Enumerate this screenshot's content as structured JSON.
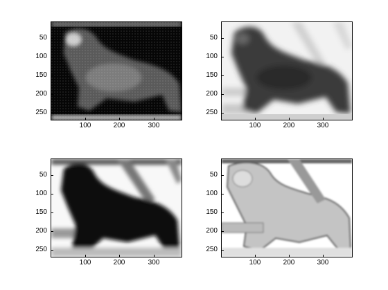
{
  "figure": {
    "panels": [
      {
        "id": "top-left",
        "style": "dark",
        "yticks": [
          "50",
          "100",
          "150",
          "200",
          "250"
        ],
        "xticks": [
          "100",
          "200",
          "300"
        ]
      },
      {
        "id": "top-right",
        "style": "light-blur",
        "yticks": [
          "50",
          "100",
          "150",
          "200",
          "250"
        ],
        "xticks": [
          "100",
          "200",
          "300"
        ]
      },
      {
        "id": "bottom-left",
        "style": "black-silhouette",
        "yticks": [
          "50",
          "100",
          "150",
          "200",
          "250"
        ],
        "xticks": [
          "100",
          "200",
          "300"
        ]
      },
      {
        "id": "bottom-right",
        "style": "edge-light",
        "yticks": [
          "50",
          "100",
          "150",
          "200",
          "250"
        ],
        "xticks": [
          "100",
          "200",
          "300"
        ]
      }
    ]
  }
}
